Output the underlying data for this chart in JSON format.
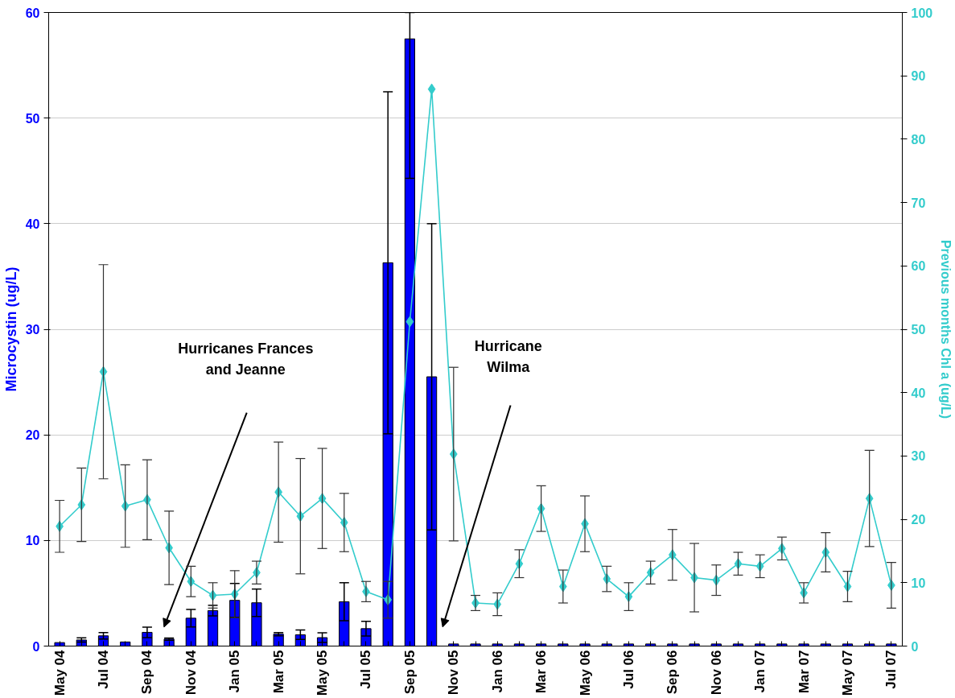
{
  "chart_data": {
    "type": "bar",
    "categories": [
      "May 04",
      null,
      "Jul 04",
      null,
      "Sep 04",
      null,
      "Nov 04",
      null,
      "Jan 05",
      null,
      "Mar 05",
      null,
      "May 05",
      null,
      "Jul 05",
      null,
      "Sep 05",
      null,
      "Nov 05",
      null,
      "Jan 06",
      null,
      "Mar 06",
      null,
      "May 06",
      null,
      "Jul 06",
      null,
      "Sep 06",
      null,
      "Nov 06",
      null,
      "Jan 07",
      null,
      "Mar 07",
      null,
      "May 07",
      null,
      "Jul 07"
    ],
    "series": [
      {
        "color": "#0000ff",
        "values": [
          0.33,
          0.58,
          0.97,
          0.39,
          1.3,
          0.66,
          2.64,
          3.36,
          4.33,
          4.1,
          1.13,
          1.07,
          0.8,
          4.2,
          1.65,
          36.3,
          57.5,
          25.5,
          0.2,
          0.2,
          0.2,
          0.2,
          0.2,
          0.2,
          0.2,
          0.2,
          0.2,
          0.2,
          0.2,
          0.2,
          0.2,
          0.2,
          0.2,
          0.2,
          0.2,
          0.2,
          0.2,
          0.2,
          0.2
        ],
        "errors": [
          null,
          0.2,
          0.3,
          null,
          0.5,
          0.1,
          0.83,
          0.5,
          1.6,
          1.3,
          0.15,
          0.45,
          0.45,
          1.8,
          0.7,
          16.2,
          [
            44.3,
            60
          ],
          14.5,
          null,
          null,
          null,
          null,
          null,
          null,
          null,
          null,
          null,
          null,
          null,
          null,
          null,
          null,
          null,
          null,
          null,
          null,
          null,
          null,
          null
        ]
      },
      {
        "type": "line",
        "axis": "y2",
        "color": "#33cccc",
        "values": [
          18.9,
          22.3,
          43.3,
          22.1,
          23.1,
          15.5,
          10.2,
          8.0,
          8.2,
          11.6,
          24.3,
          20.5,
          23.3,
          19.5,
          8.6,
          7.3,
          51.2,
          87.9,
          30.3,
          6.8,
          6.6,
          13.0,
          21.7,
          9.4,
          19.3,
          10.6,
          7.8,
          11.6,
          14.4,
          10.8,
          10.4,
          13.0,
          12.6,
          15.4,
          8.4,
          14.8,
          9.4,
          23.3,
          9.6
        ],
        "errors": [
          4.1,
          5.8,
          16.9,
          6.5,
          6.3,
          5.8,
          2.4,
          2.0,
          3.7,
          1.8,
          7.9,
          9.1,
          7.9,
          4.6,
          1.6,
          2.9,
          null,
          null,
          13.7,
          1.2,
          1.8,
          2.2,
          3.6,
          2.6,
          4.4,
          2.0,
          2.2,
          1.8,
          4.0,
          5.4,
          2.4,
          1.8,
          1.8,
          1.8,
          1.6,
          3.1,
          2.4,
          7.6,
          3.6
        ]
      }
    ],
    "ylabel": "Microcystin (ug/L)",
    "y2label": "Previous months Chl a (ug/L)",
    "ylim": [
      0,
      60
    ],
    "yticks": [
      0,
      10,
      20,
      30,
      40,
      50,
      60
    ],
    "y2lim": [
      0,
      100
    ],
    "y2ticks": [
      0,
      10,
      20,
      30,
      40,
      50,
      60,
      70,
      80,
      90,
      100
    ],
    "grid": "y",
    "marker": "diamond",
    "line_style": "solid",
    "annotations": [
      "Hurricanes Frances\nand Jeanne",
      "Hurricane\nWilma"
    ]
  }
}
